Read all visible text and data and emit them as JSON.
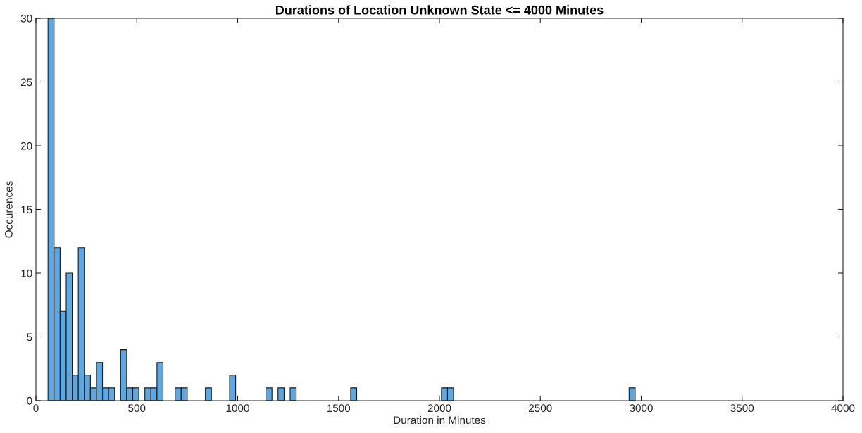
{
  "chart_data": {
    "type": "histogram",
    "title": "Durations of Location Unknown State <= 4000 Minutes",
    "xlabel": "Duration in Minutes",
    "ylabel": "Occurences",
    "color": "#61a6dc",
    "bins": [
      60,
      90,
      120,
      150,
      180,
      210,
      240,
      270,
      300,
      330,
      360,
      390,
      420,
      450,
      480,
      510,
      540,
      570,
      600,
      630,
      660,
      690,
      720,
      750,
      780,
      810,
      840,
      870,
      900,
      930,
      960,
      990,
      1020,
      1050,
      1080,
      1110,
      1140,
      1170,
      1200,
      1230,
      1260,
      1290,
      1320,
      1350,
      1380,
      1410,
      1440,
      1470,
      1500,
      1530,
      1560,
      1590,
      1620,
      1650,
      1680,
      1710,
      1740,
      1770,
      1800,
      1830,
      1860,
      1890,
      1920,
      1950,
      1980,
      2010,
      2040,
      2070,
      2100,
      2130,
      2160,
      2190,
      2220,
      2250,
      2280,
      2310,
      2340,
      2370,
      2400,
      2430,
      2460,
      2490,
      2520,
      2550,
      2580,
      2610,
      2640,
      2670,
      2700,
      2730,
      2760,
      2790,
      2820,
      2850,
      2880,
      2910,
      2940,
      2970
    ],
    "values": [
      30,
      12,
      7,
      10,
      2,
      12,
      2,
      1,
      3,
      1,
      1,
      0,
      4,
      1,
      1,
      0,
      1,
      1,
      3,
      0,
      0,
      1,
      1,
      0,
      0,
      0,
      1,
      0,
      0,
      0,
      2,
      0,
      0,
      0,
      0,
      0,
      1,
      0,
      1,
      0,
      1,
      0,
      0,
      0,
      0,
      0,
      0,
      0,
      0,
      0,
      1,
      0,
      0,
      0,
      0,
      0,
      0,
      0,
      0,
      0,
      0,
      0,
      0,
      0,
      0,
      1,
      1,
      0,
      0,
      0,
      0,
      0,
      0,
      0,
      0,
      0,
      0,
      0,
      0,
      0,
      0,
      0,
      0,
      0,
      0,
      0,
      0,
      0,
      0,
      0,
      0,
      0,
      0,
      0,
      0,
      0,
      1
    ],
    "xlim": [
      0,
      4000
    ],
    "xticks": [
      0,
      500,
      1000,
      1500,
      2000,
      2500,
      3000,
      3500,
      4000
    ],
    "ylim": [
      0,
      30
    ],
    "yticks": [
      0,
      5,
      10,
      15,
      20,
      25,
      30
    ],
    "grid": false
  }
}
